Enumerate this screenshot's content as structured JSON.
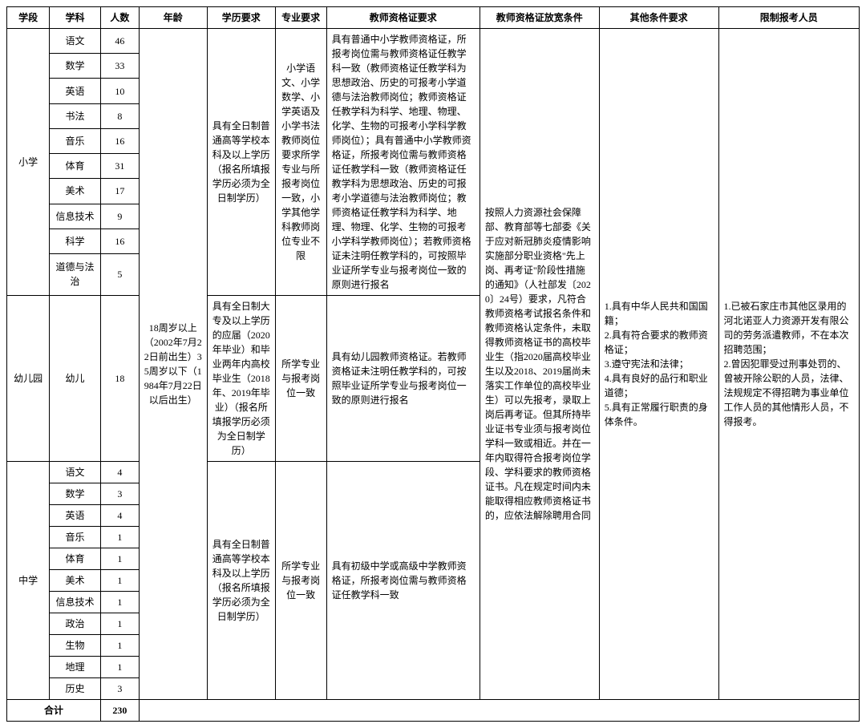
{
  "headers": {
    "stage": "学段",
    "subject": "学科",
    "count": "人数",
    "age": "年龄",
    "edu": "学历要求",
    "major": "专业要求",
    "cert": "教师资格证要求",
    "relax": "教师资格证放宽条件",
    "other": "其他条件要求",
    "limit": "限制报考人员"
  },
  "stages": {
    "primary": "小学",
    "kinder": "幼儿园",
    "middle": "中学"
  },
  "primary_rows": [
    {
      "subject": "语文",
      "count": 46
    },
    {
      "subject": "数学",
      "count": 33
    },
    {
      "subject": "英语",
      "count": 10
    },
    {
      "subject": "书法",
      "count": 8
    },
    {
      "subject": "音乐",
      "count": 16
    },
    {
      "subject": "体育",
      "count": 31
    },
    {
      "subject": "美术",
      "count": 17
    },
    {
      "subject": "信息技术",
      "count": 9
    },
    {
      "subject": "科学",
      "count": 16
    },
    {
      "subject": "道德与法治",
      "count": 5
    }
  ],
  "kinder_row": {
    "subject": "幼儿",
    "count": 18
  },
  "middle_rows": [
    {
      "subject": "语文",
      "count": 4
    },
    {
      "subject": "数学",
      "count": 3
    },
    {
      "subject": "英语",
      "count": 4
    },
    {
      "subject": "音乐",
      "count": 1
    },
    {
      "subject": "体育",
      "count": 1
    },
    {
      "subject": "美术",
      "count": 1
    },
    {
      "subject": "信息技术",
      "count": 1
    },
    {
      "subject": "政治",
      "count": 1
    },
    {
      "subject": "生物",
      "count": 1
    },
    {
      "subject": "地理",
      "count": 1
    },
    {
      "subject": "历史",
      "count": 3
    }
  ],
  "age_text": "18周岁以上（2002年7月22日前出生）35周岁以下（1984年7月22日以后出生）",
  "edu_primary": "具有全日制普通高等学校本科及以上学历（报名所填报学历必须为全日制学历）",
  "edu_kinder": "具有全日制大专及以上学历的应届（2020年毕业）和毕业两年内高校毕业生（2018年、2019年毕业）（报名所填报学历必须为全日制学历）",
  "edu_middle": "具有全日制普通高等学校本科及以上学历（报名所填报学历必须为全日制学历）",
  "major_primary": "小学语文、小学数学、小学英语及小学书法教师岗位要求所学专业与所报考岗位一致，小学其他学科教师岗位专业不限",
  "major_kinder": "所学专业与报考岗位一致",
  "major_middle": "所学专业与报考岗位一致",
  "cert_primary": "具有普通中小学教师资格证，所报考岗位需与教师资格证任教学科一致（教师资格证任教学科为思想政治、历史的可报考小学道德与法治教师岗位；教师资格证任教学科为科学、地理、物理、化学、生物的可报考小学科学教师岗位）；具有普通中小学教师资格证，所报考岗位需与教师资格证任教学科一致（教师资格证任教学科为思想政治、历史的可报考小学道德与法治教师岗位；教师资格证任教学科为科学、地理、物理、化学、生物的可报考小学科学教师岗位）；若教师资格证未注明任教学科的，可按照毕业证所学专业与报考岗位一致的原则进行报名",
  "cert_kinder": "具有幼儿园教师资格证。若教师资格证未注明任教学科的，可按照毕业证所学专业与报考岗位一致的原则进行报名",
  "cert_middle": "具有初级中学或高级中学教师资格证，所报考岗位需与教师资格证任教学科一致",
  "relax_text": "按照人力资源社会保障部、教育部等七部委《关于应对新冠肺炎疫情影响实施部分职业资格\"先上岗、再考证\"阶段性措施的通知》（人社部发〔2020〕24号）要求，凡符合教师资格考试报名条件和教师资格认定条件，未取得教师资格证书的高校毕业生（指2020届高校毕业生以及2018、2019届尚未落实工作单位的高校毕业生）可以先报考，录取上岗后再考证。但其所持毕业证书专业须与报考岗位学科一致或相近。并在一年内取得符合报考岗位学段、学科要求的教师资格证书。凡在规定时间内未能取得相应教师资格证书的，应依法解除聘用合同",
  "other_text": "1.具有中华人民共和国国籍；\n2.具有符合要求的教师资格证；\n3.遵守宪法和法律；\n4.具有良好的品行和职业道德；\n5.具有正常履行职责的身体条件。",
  "limit_text": "1.已被石家庄市其他区录用的河北诺亚人力资源开发有限公司的劳务派遣教师，不在本次招聘范围；\n2.曾因犯罪受过刑事处罚的、曾被开除公职的人员，法律、法规规定不得招聘为事业单位工作人员的其他情形人员，不得报考。",
  "total_label": "合计",
  "total_count": 230,
  "colors": {
    "border": "#000000",
    "text": "#000000",
    "background": "#ffffff"
  },
  "font": {
    "family": "SimSun",
    "size_pt": 9,
    "header_weight": "bold"
  }
}
